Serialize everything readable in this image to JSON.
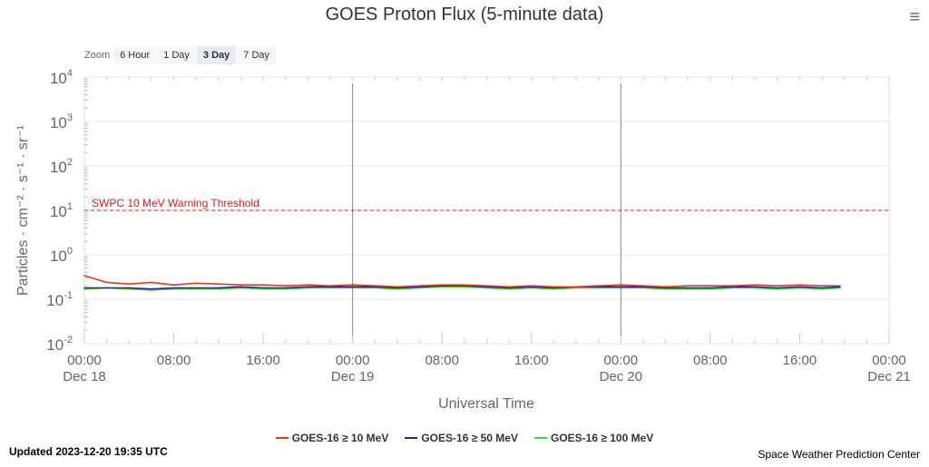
{
  "chart_data": {
    "type": "line",
    "title": "GOES Proton Flux (5-minute data)",
    "xlabel": "Universal Time",
    "ylabel": "Particles · cm⁻² · s⁻¹ · sr⁻¹",
    "yscale": "log",
    "ylim": [
      0.01,
      10000
    ],
    "y_ticks": [
      {
        "value": 0.01,
        "base": "10",
        "exp": "-2"
      },
      {
        "value": 0.1,
        "base": "10",
        "exp": "-1"
      },
      {
        "value": 1,
        "base": "10",
        "exp": "0"
      },
      {
        "value": 10,
        "base": "10",
        "exp": "1"
      },
      {
        "value": 100,
        "base": "10",
        "exp": "2"
      },
      {
        "value": 1000,
        "base": "10",
        "exp": "3"
      },
      {
        "value": 10000,
        "base": "10",
        "exp": "4"
      }
    ],
    "xlim_hours": [
      0,
      72
    ],
    "x_ticks": [
      {
        "hour": 0,
        "time": "00:00",
        "date": "Dec 18"
      },
      {
        "hour": 8,
        "time": "08:00",
        "date": ""
      },
      {
        "hour": 16,
        "time": "16:00",
        "date": ""
      },
      {
        "hour": 24,
        "time": "00:00",
        "date": "Dec 19"
      },
      {
        "hour": 32,
        "time": "08:00",
        "date": ""
      },
      {
        "hour": 40,
        "time": "16:00",
        "date": ""
      },
      {
        "hour": 48,
        "time": "00:00",
        "date": "Dec 20"
      },
      {
        "hour": 56,
        "time": "08:00",
        "date": ""
      },
      {
        "hour": 64,
        "time": "16:00",
        "date": ""
      },
      {
        "hour": 72,
        "time": "00:00",
        "date": "Dec 21"
      }
    ],
    "day_lines_hours": [
      24,
      48
    ],
    "threshold": {
      "value": 10,
      "label": "SWPC 10 MeV Warning Threshold",
      "color": "#cc2222"
    },
    "x_hours": [
      0,
      2,
      4,
      6,
      8,
      10,
      12,
      14,
      16,
      18,
      20,
      22,
      24,
      26,
      28,
      30,
      32,
      34,
      36,
      38,
      40,
      42,
      44,
      46,
      48,
      50,
      52,
      54,
      56,
      58,
      60,
      62,
      64,
      66,
      67.6
    ],
    "series": [
      {
        "name": "GOES-16 ≥ 10 MeV",
        "color": "#e03a1e",
        "values": [
          0.34,
          0.24,
          0.22,
          0.24,
          0.21,
          0.23,
          0.22,
          0.21,
          0.21,
          0.2,
          0.21,
          0.2,
          0.21,
          0.2,
          0.19,
          0.2,
          0.21,
          0.21,
          0.2,
          0.19,
          0.2,
          0.19,
          0.19,
          0.2,
          0.21,
          0.2,
          0.19,
          0.2,
          0.2,
          0.2,
          0.21,
          0.2,
          0.21,
          0.2,
          0.2
        ]
      },
      {
        "name": "GOES-16 ≥ 50 MeV",
        "color": "#1f2a8a",
        "values": [
          0.18,
          0.18,
          0.18,
          0.17,
          0.18,
          0.18,
          0.18,
          0.19,
          0.18,
          0.18,
          0.19,
          0.19,
          0.19,
          0.19,
          0.18,
          0.19,
          0.2,
          0.2,
          0.19,
          0.18,
          0.19,
          0.18,
          0.19,
          0.19,
          0.19,
          0.19,
          0.18,
          0.18,
          0.18,
          0.19,
          0.19,
          0.18,
          0.19,
          0.18,
          0.19
        ]
      },
      {
        "name": "GOES-16 ≥ 100 MeV",
        "color": "#3ed63a",
        "values": [
          0.17,
          0.18,
          0.17,
          0.16,
          0.17,
          0.17,
          0.17,
          0.18,
          0.17,
          0.17,
          0.18,
          0.18,
          0.18,
          0.18,
          0.17,
          0.18,
          0.19,
          0.19,
          0.18,
          0.17,
          0.18,
          0.17,
          0.18,
          0.18,
          0.18,
          0.18,
          0.17,
          0.17,
          0.17,
          0.18,
          0.18,
          0.17,
          0.18,
          0.17,
          0.18
        ]
      }
    ]
  },
  "ui": {
    "zoom_label": "Zoom",
    "zoom_buttons": [
      "6 Hour",
      "1 Day",
      "3 Day",
      "7 Day"
    ],
    "zoom_selected": "3 Day",
    "menu_icon": "hamburger-icon",
    "updated": "Updated 2023-12-20 19:35 UTC",
    "credit": "Space Weather Prediction Center"
  }
}
